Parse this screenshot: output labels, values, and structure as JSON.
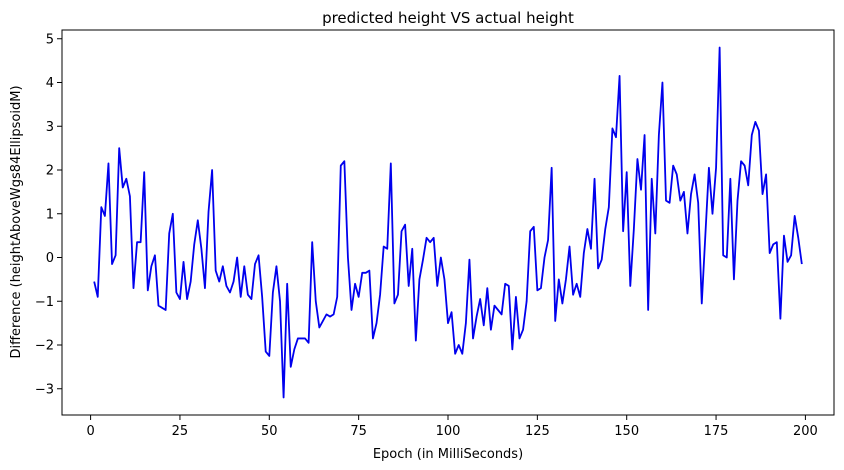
{
  "chart_data": {
    "type": "line",
    "title": "predicted height VS actual height",
    "xlabel": "Epoch (in MilliSeconds)",
    "ylabel": "Difference (heightAboveWgs84EllipsoidM)",
    "xlim": [
      -8,
      208
    ],
    "ylim": [
      -3.6,
      5.2
    ],
    "xticks": [
      0,
      25,
      50,
      75,
      100,
      125,
      150,
      175,
      200
    ],
    "yticks": [
      -3,
      -2,
      -1,
      0,
      1,
      2,
      3,
      4,
      5
    ],
    "grid": false,
    "line_color": "#0000ee",
    "series": [
      {
        "x": [
          1,
          2,
          3,
          4,
          5,
          6,
          7,
          8,
          9,
          10,
          11,
          12,
          13,
          14,
          15,
          16,
          17,
          18,
          19,
          20,
          21,
          22,
          23,
          24,
          25,
          26,
          27,
          28,
          29,
          30,
          31,
          32,
          33,
          34,
          35,
          36,
          37,
          38,
          39,
          40,
          41,
          42,
          43,
          44,
          45,
          46,
          47,
          48,
          49,
          50,
          51,
          52,
          53,
          54,
          55,
          56,
          57,
          58,
          59,
          60,
          61,
          62,
          63,
          64,
          65,
          66,
          67,
          68,
          69,
          70,
          71,
          72,
          73,
          74,
          75,
          76,
          77,
          78,
          79,
          80,
          81,
          82,
          83,
          84,
          85,
          86,
          87,
          88,
          89,
          90,
          91,
          92,
          93,
          94,
          95,
          96,
          97,
          98,
          99,
          100,
          101,
          102,
          103,
          104,
          105,
          106,
          107,
          108,
          109,
          110,
          111,
          112,
          113,
          114,
          115,
          116,
          117,
          118,
          119,
          120,
          121,
          122,
          123,
          124,
          125,
          126,
          127,
          128,
          129,
          130,
          131,
          132,
          133,
          134,
          135,
          136,
          137,
          138,
          139,
          140,
          141,
          142,
          143,
          144,
          145,
          146,
          147,
          148,
          149,
          150,
          151,
          152,
          153,
          154,
          155,
          156,
          157,
          158,
          159,
          160,
          161,
          162,
          163,
          164,
          165,
          166,
          167,
          168,
          169,
          170,
          171,
          172,
          173,
          174,
          175,
          176,
          177,
          178,
          179,
          180,
          181,
          182,
          183,
          184,
          185,
          186,
          187,
          188,
          189,
          190,
          191,
          192,
          193,
          194,
          195,
          196,
          197,
          198,
          199
        ],
        "values": [
          -0.55,
          -0.9,
          1.15,
          0.95,
          2.15,
          -0.15,
          0.05,
          2.5,
          1.6,
          1.8,
          1.4,
          -0.7,
          0.35,
          0.35,
          1.95,
          -0.75,
          -0.2,
          0.05,
          -1.1,
          -1.15,
          -1.2,
          0.55,
          1.0,
          -0.8,
          -0.95,
          -0.1,
          -0.95,
          -0.55,
          0.3,
          0.85,
          0.2,
          -0.7,
          1.05,
          2.0,
          -0.3,
          -0.55,
          -0.2,
          -0.65,
          -0.8,
          -0.55,
          0.0,
          -0.9,
          -0.2,
          -0.85,
          -0.95,
          -0.15,
          0.05,
          -0.9,
          -2.15,
          -2.25,
          -0.8,
          -0.2,
          -1.0,
          -3.2,
          -0.6,
          -2.5,
          -2.1,
          -1.85,
          -1.85,
          -1.85,
          -1.95,
          0.35,
          -1.0,
          -1.6,
          -1.45,
          -1.3,
          -1.35,
          -1.3,
          -0.9,
          2.1,
          2.2,
          0.0,
          -1.2,
          -0.6,
          -0.9,
          -0.35,
          -0.35,
          -0.3,
          -1.85,
          -1.5,
          -0.85,
          0.25,
          0.2,
          2.15,
          -1.05,
          -0.85,
          0.6,
          0.75,
          -0.65,
          0.2,
          -1.9,
          -0.5,
          -0.05,
          0.45,
          0.35,
          0.45,
          -0.65,
          0.0,
          -0.5,
          -1.5,
          -1.25,
          -2.2,
          -2.0,
          -2.2,
          -1.5,
          -0.05,
          -1.85,
          -1.35,
          -0.95,
          -1.55,
          -0.7,
          -1.65,
          -1.1,
          -1.2,
          -1.3,
          -0.6,
          -0.65,
          -2.1,
          -0.9,
          -1.85,
          -1.65,
          -1.0,
          0.6,
          0.7,
          -0.75,
          -0.7,
          0.0,
          0.4,
          2.05,
          -1.45,
          -0.5,
          -1.05,
          -0.5,
          0.25,
          -0.85,
          -0.6,
          -0.9,
          0.1,
          0.65,
          0.2,
          1.8,
          -0.25,
          -0.05,
          0.65,
          1.15,
          2.95,
          2.75,
          4.15,
          0.6,
          1.95,
          -0.65,
          0.65,
          2.25,
          1.55,
          2.8,
          -1.2,
          1.8,
          0.55,
          2.8,
          4.0,
          1.3,
          1.25,
          2.1,
          1.9,
          1.3,
          1.5,
          0.55,
          1.45,
          1.9,
          1.25,
          -1.05,
          0.5,
          2.05,
          1.0,
          2.05,
          4.8,
          0.05,
          0.0,
          1.8,
          -0.5,
          1.3,
          2.2,
          2.1,
          1.65,
          2.8,
          3.1,
          2.9,
          1.45,
          1.9,
          0.1,
          0.3,
          0.35,
          -1.4,
          0.5,
          -0.1,
          0.05,
          0.95,
          0.45,
          -0.15
        ]
      }
    ]
  }
}
